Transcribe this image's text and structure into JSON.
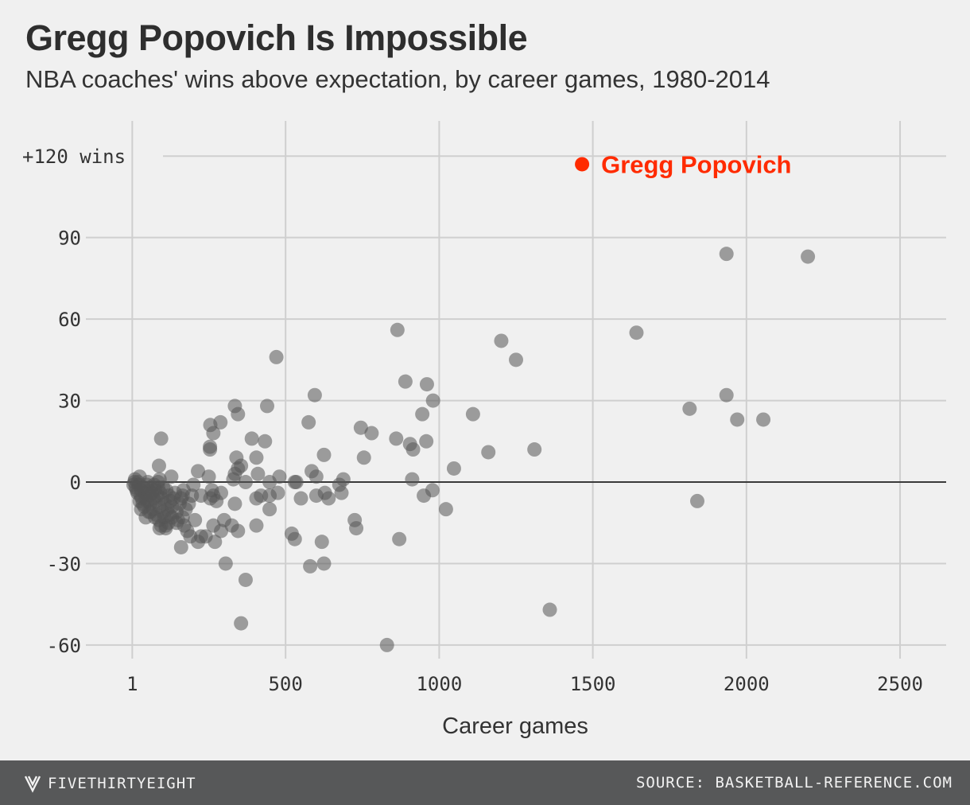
{
  "header": {
    "title": "Gregg Popovich Is Impossible",
    "subtitle": "NBA coaches' wins above expectation, by career games, 1980-2014"
  },
  "footer": {
    "brand": "FIVETHIRTYEIGHT",
    "source": "SOURCE: BASKETBALL-REFERENCE.COM"
  },
  "colors": {
    "highlight": "#ff2b00",
    "point": "#555555",
    "background": "#f0f0f0",
    "footer": "#575859"
  },
  "chart_data": {
    "type": "scatter",
    "title": "Gregg Popovich Is Impossible",
    "subtitle": "NBA coaches' wins above expectation, by career games, 1980-2014",
    "xlabel": "Career games",
    "ylabel": "",
    "xlim": [
      -150,
      2650
    ],
    "ylim": [
      -65,
      135
    ],
    "x_ticks": [
      1,
      500,
      1000,
      1500,
      2000,
      2500
    ],
    "x_tick_labels": [
      "1",
      "500",
      "1000",
      "1500",
      "2000",
      "2500"
    ],
    "y_ticks": [
      120,
      90,
      60,
      30,
      0,
      -30,
      -60
    ],
    "y_tick_labels": [
      "+120 wins",
      "90",
      "60",
      "30",
      "0",
      "-30",
      "-60"
    ],
    "grid": true,
    "highlight": {
      "name": "Gregg Popovich",
      "x": 1465,
      "y": 117
    },
    "points": [
      [
        864,
        56
      ],
      [
        1202,
        52
      ],
      [
        1250,
        45
      ],
      [
        1642,
        55
      ],
      [
        1935,
        84
      ],
      [
        2200,
        83
      ],
      [
        1935,
        32
      ],
      [
        1815,
        27
      ],
      [
        1970,
        23
      ],
      [
        2055,
        23
      ],
      [
        1840,
        -7
      ],
      [
        470,
        46
      ],
      [
        890,
        37
      ],
      [
        960,
        36
      ],
      [
        980,
        30
      ],
      [
        945,
        25
      ],
      [
        1110,
        25
      ],
      [
        1310,
        12
      ],
      [
        1160,
        11
      ],
      [
        1048,
        5
      ],
      [
        912,
        1
      ],
      [
        978,
        -3
      ],
      [
        950,
        -5
      ],
      [
        1022,
        -10
      ],
      [
        860,
        16
      ],
      [
        905,
        14
      ],
      [
        958,
        15
      ],
      [
        915,
        12
      ],
      [
        780,
        18
      ],
      [
        745,
        20
      ],
      [
        755,
        9
      ],
      [
        870,
        -21
      ],
      [
        725,
        -14
      ],
      [
        730,
        -17
      ],
      [
        830,
        -60
      ],
      [
        1360,
        -47
      ],
      [
        595,
        32
      ],
      [
        575,
        22
      ],
      [
        600,
        2
      ],
      [
        585,
        4
      ],
      [
        625,
        10
      ],
      [
        688,
        1
      ],
      [
        675,
        -1
      ],
      [
        682,
        -4
      ],
      [
        628,
        -4
      ],
      [
        640,
        -6
      ],
      [
        600,
        -5
      ],
      [
        618,
        -22
      ],
      [
        625,
        -30
      ],
      [
        580,
        -31
      ],
      [
        440,
        28
      ],
      [
        433,
        15
      ],
      [
        390,
        16
      ],
      [
        405,
        9
      ],
      [
        410,
        3
      ],
      [
        420,
        -5
      ],
      [
        448,
        -5
      ],
      [
        448,
        -10
      ],
      [
        475,
        -4
      ],
      [
        480,
        2
      ],
      [
        448,
        0
      ],
      [
        530,
        0
      ],
      [
        535,
        0
      ],
      [
        550,
        -6
      ],
      [
        520,
        -19
      ],
      [
        530,
        -21
      ],
      [
        335,
        28
      ],
      [
        345,
        25
      ],
      [
        288,
        22
      ],
      [
        255,
        21
      ],
      [
        265,
        18
      ],
      [
        254,
        12
      ],
      [
        254,
        13
      ],
      [
        340,
        9
      ],
      [
        345,
        5
      ],
      [
        335,
        3
      ],
      [
        355,
        6
      ],
      [
        370,
        0
      ],
      [
        330,
        1
      ],
      [
        405,
        -6
      ],
      [
        405,
        -16
      ],
      [
        335,
        -8
      ],
      [
        345,
        -18
      ],
      [
        300,
        -14
      ],
      [
        325,
        -16
      ],
      [
        305,
        -30
      ],
      [
        370,
        -36
      ],
      [
        355,
        -52
      ],
      [
        95,
        16
      ],
      [
        88,
        6
      ],
      [
        85,
        0
      ],
      [
        90,
        1
      ],
      [
        215,
        4
      ],
      [
        250,
        2
      ],
      [
        260,
        -3
      ],
      [
        265,
        -5
      ],
      [
        275,
        -7
      ],
      [
        290,
        -4
      ],
      [
        255,
        -6
      ],
      [
        225,
        -5
      ],
      [
        200,
        -1
      ],
      [
        195,
        -5
      ],
      [
        185,
        -8
      ],
      [
        175,
        -10
      ],
      [
        165,
        -13
      ],
      [
        170,
        -16
      ],
      [
        180,
        -18
      ],
      [
        190,
        -20
      ],
      [
        215,
        -22
      ],
      [
        225,
        -20
      ],
      [
        160,
        -24
      ],
      [
        265,
        -16
      ],
      [
        270,
        -22
      ],
      [
        290,
        -18
      ],
      [
        205,
        -14
      ],
      [
        240,
        -20
      ],
      [
        5,
        -1
      ],
      [
        8,
        0
      ],
      [
        10,
        1
      ],
      [
        12,
        -2
      ],
      [
        15,
        -3
      ],
      [
        18,
        -4
      ],
      [
        20,
        0
      ],
      [
        22,
        -1
      ],
      [
        25,
        2
      ],
      [
        28,
        -5
      ],
      [
        30,
        -3
      ],
      [
        32,
        -6
      ],
      [
        35,
        -8
      ],
      [
        38,
        -2
      ],
      [
        40,
        -9
      ],
      [
        42,
        -4
      ],
      [
        45,
        -6
      ],
      [
        48,
        -1
      ],
      [
        50,
        -7
      ],
      [
        52,
        0
      ],
      [
        55,
        -3
      ],
      [
        58,
        -5
      ],
      [
        60,
        -8
      ],
      [
        62,
        -2
      ],
      [
        65,
        -4
      ],
      [
        68,
        -10
      ],
      [
        70,
        -6
      ],
      [
        72,
        -1
      ],
      [
        75,
        -3
      ],
      [
        78,
        -7
      ],
      [
        80,
        -12
      ],
      [
        82,
        -5
      ],
      [
        85,
        -2
      ],
      [
        88,
        -14
      ],
      [
        90,
        -9
      ],
      [
        92,
        -4
      ],
      [
        95,
        -16
      ],
      [
        98,
        -6
      ],
      [
        100,
        -11
      ],
      [
        102,
        -2
      ],
      [
        105,
        -13
      ],
      [
        108,
        -8
      ],
      [
        110,
        -17
      ],
      [
        112,
        -3
      ],
      [
        115,
        -10
      ],
      [
        118,
        -15
      ],
      [
        120,
        -5
      ],
      [
        122,
        -12
      ],
      [
        125,
        -7
      ],
      [
        128,
        2
      ],
      [
        130,
        -9
      ],
      [
        135,
        -6
      ],
      [
        140,
        -4
      ],
      [
        145,
        -11
      ],
      [
        150,
        -14
      ],
      [
        155,
        -8
      ],
      [
        160,
        -6
      ],
      [
        165,
        -5
      ],
      [
        168,
        -3
      ],
      [
        30,
        -10
      ],
      [
        45,
        -13
      ],
      [
        60,
        -11
      ],
      [
        75,
        -13
      ],
      [
        90,
        -17
      ],
      [
        110,
        -16
      ],
      [
        130,
        -13
      ],
      [
        145,
        -15
      ],
      [
        25,
        -7
      ],
      [
        55,
        -11
      ]
    ]
  }
}
